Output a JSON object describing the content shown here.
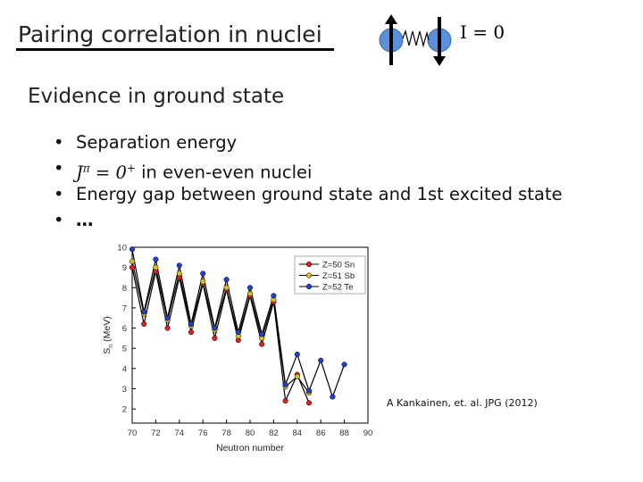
{
  "slide": {
    "title": "Pairing correlation in nuclei",
    "spin_label": "I = 0",
    "subtitle": "Evidence in ground state",
    "bullets": [
      "Separation energy",
      "in even-even nuclei",
      "Energy gap between ground state and 1st excited state",
      "…"
    ],
    "bullet_glyph": "•",
    "jpi_symbol": "J",
    "jpi_sup": "π",
    "jpi_value": "= 0",
    "jpi_plus": "+",
    "citation": "A Kankainen, et. al. JPG (2012)"
  },
  "chart_data": {
    "type": "line",
    "xlabel": "Neutron number",
    "ylabel": "S_n (MeV)",
    "ylabel_main": "S",
    "ylabel_sub": "n",
    "ylabel_rest": "(MeV)",
    "xlim": [
      70,
      90
    ],
    "ylim": [
      1.3,
      10
    ],
    "xticks": [
      70,
      72,
      74,
      76,
      78,
      80,
      82,
      84,
      86,
      88,
      90
    ],
    "yticks": [
      2,
      3,
      4,
      5,
      6,
      7,
      8,
      9,
      10
    ],
    "legend_position": "top-right",
    "series": [
      {
        "name": "Z=50 Sn",
        "color": "#e02020",
        "x": [
          70,
          71,
          72,
          73,
          74,
          75,
          76,
          77,
          78,
          79,
          80,
          81,
          82,
          83,
          84,
          85
        ],
        "y": [
          9.0,
          6.2,
          8.8,
          6.0,
          8.5,
          5.8,
          8.2,
          5.5,
          7.9,
          5.4,
          7.6,
          5.2,
          7.3,
          2.4,
          3.7,
          2.3
        ]
      },
      {
        "name": "Z=51 Sb",
        "color": "#d8c020",
        "x": [
          70,
          71,
          72,
          73,
          74,
          75,
          76,
          77,
          78,
          79,
          80,
          81,
          82,
          83,
          84,
          85
        ],
        "y": [
          9.3,
          6.7,
          9.0,
          6.4,
          8.7,
          6.1,
          8.3,
          5.9,
          8.0,
          5.6,
          7.7,
          5.5,
          7.4,
          3.1,
          3.6,
          2.8
        ]
      },
      {
        "name": "Z=52 Te",
        "color": "#1f3fd0",
        "x": [
          70,
          71,
          72,
          73,
          74,
          75,
          76,
          77,
          78,
          79,
          80,
          81,
          82,
          83,
          84,
          85,
          86,
          87,
          88
        ],
        "y": [
          9.9,
          6.8,
          9.4,
          6.5,
          9.1,
          6.2,
          8.7,
          6.0,
          8.4,
          5.8,
          8.0,
          5.7,
          7.6,
          3.2,
          4.7,
          2.9,
          4.4,
          2.6,
          4.2
        ]
      }
    ]
  }
}
